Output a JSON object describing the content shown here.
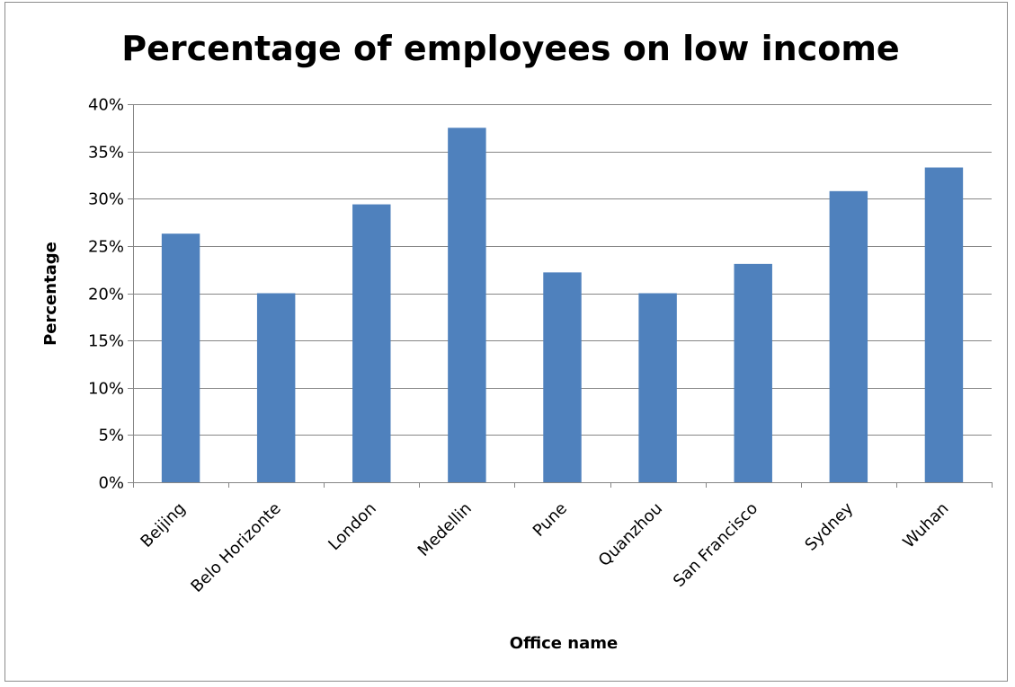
{
  "chart_data": {
    "type": "bar",
    "title": "Percentage of employees on low income",
    "xlabel": "Office name",
    "ylabel": "Percentage",
    "categories": [
      "Beijing",
      "Belo Horizonte",
      "London",
      "Medellin",
      "Pune",
      "Quanzhou",
      "San Francisco",
      "Sydney",
      "Wuhan"
    ],
    "values": [
      26.3,
      20.0,
      29.4,
      37.5,
      22.2,
      20.0,
      23.1,
      30.8,
      33.3
    ],
    "ylim": [
      0,
      40
    ],
    "yticks": [
      0,
      5,
      10,
      15,
      20,
      25,
      30,
      35,
      40
    ],
    "ytick_labels": [
      "0%",
      "5%",
      "10%",
      "15%",
      "20%",
      "25%",
      "30%",
      "35%",
      "40%"
    ],
    "grid": true,
    "legend": false,
    "bar_color": "#4f81bd",
    "grid_color": "#868686"
  }
}
